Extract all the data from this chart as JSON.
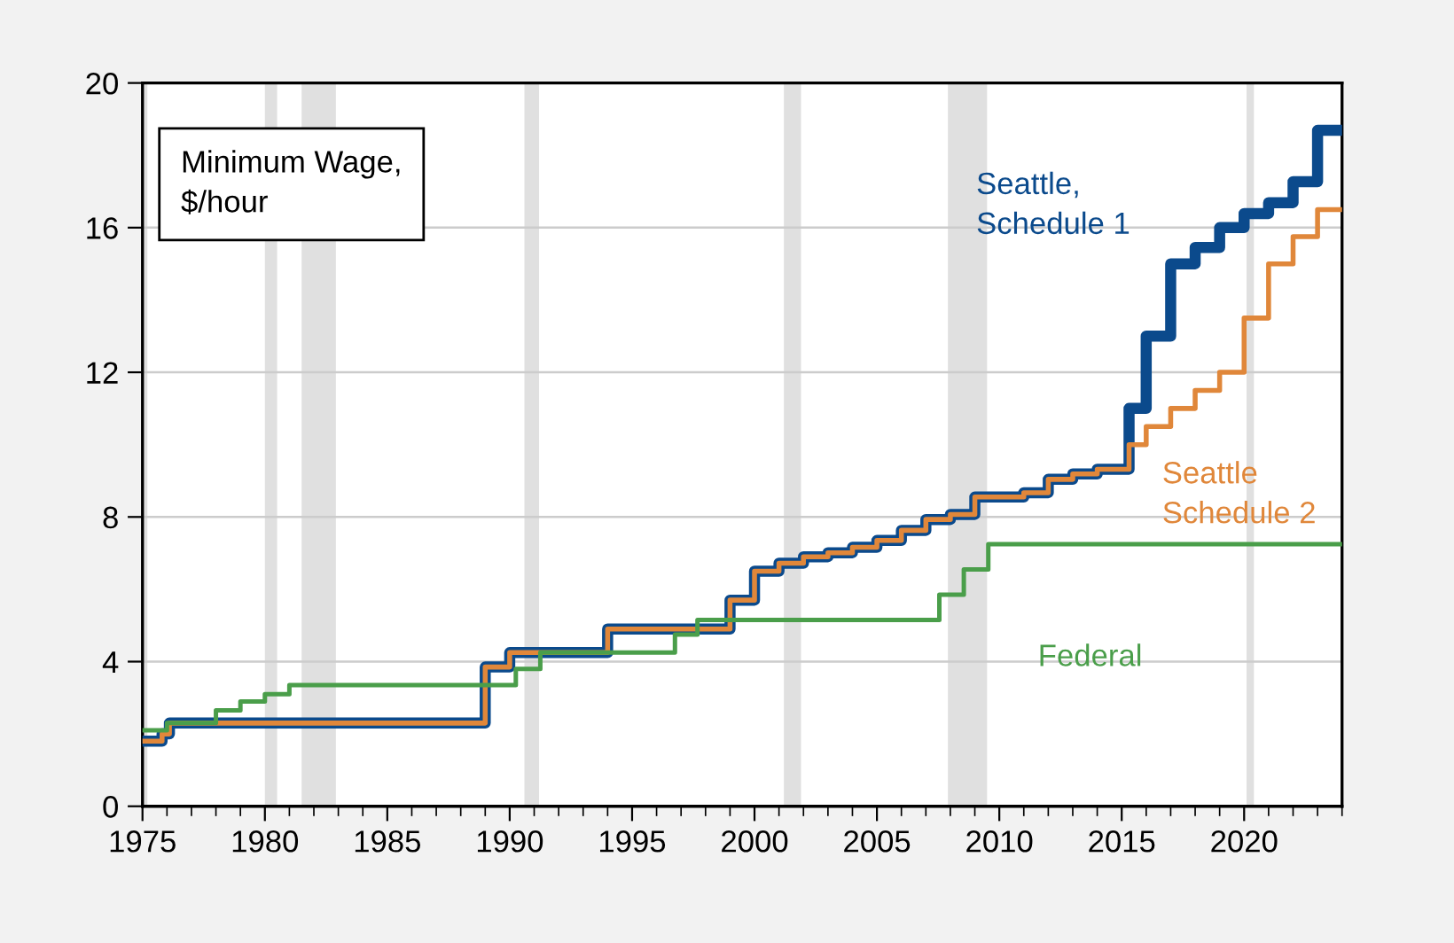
{
  "chart_data": {
    "type": "step",
    "title": "Minimum Wage,\n$/hour",
    "series": [
      {
        "name": "Seattle,\nSchedule 1",
        "color": "#0b4a8c",
        "x": [
          1975,
          1975.8,
          1976.1,
          1989,
          1990,
          1994,
          1999,
          2000,
          2001,
          2002,
          2003,
          2004,
          2005,
          2006,
          2007,
          2008,
          2009,
          2011,
          2012,
          2013,
          2014,
          2015.3,
          2016,
          2017,
          2018,
          2019,
          2020,
          2021,
          2022,
          2023,
          2024
        ],
        "values": [
          1.8,
          2.0,
          2.3,
          3.85,
          4.25,
          4.9,
          5.7,
          6.5,
          6.72,
          6.9,
          7.01,
          7.16,
          7.35,
          7.63,
          7.93,
          8.07,
          8.55,
          8.67,
          9.04,
          9.19,
          9.32,
          11.0,
          13.0,
          15.0,
          15.45,
          16.0,
          16.39,
          16.69,
          17.27,
          18.69,
          18.69
        ]
      },
      {
        "name": "Seattle\nSchedule 2",
        "color": "#e0873a",
        "x": [
          1975,
          1975.8,
          1976.1,
          1989,
          1990,
          1994,
          1999,
          2000,
          2001,
          2002,
          2003,
          2004,
          2005,
          2006,
          2007,
          2008,
          2009,
          2011,
          2012,
          2013,
          2014,
          2015.3,
          2016,
          2017,
          2018,
          2019,
          2020,
          2021,
          2022,
          2023,
          2024
        ],
        "values": [
          1.8,
          2.0,
          2.3,
          3.85,
          4.25,
          4.9,
          5.7,
          6.5,
          6.72,
          6.9,
          7.01,
          7.16,
          7.35,
          7.63,
          7.93,
          8.07,
          8.55,
          8.67,
          9.04,
          9.19,
          9.32,
          10.0,
          10.5,
          11.0,
          11.5,
          12.0,
          13.5,
          15.0,
          15.75,
          16.5,
          16.5
        ]
      },
      {
        "name": "Federal",
        "color": "#4a9e4a",
        "x": [
          1975,
          1976,
          1978,
          1979,
          1980,
          1981,
          1990.25,
          1991.25,
          1996.75,
          1997.67,
          2007.55,
          2008.55,
          2009.55,
          2024
        ],
        "values": [
          2.1,
          2.3,
          2.65,
          2.9,
          3.1,
          3.35,
          3.8,
          4.25,
          4.75,
          5.15,
          5.85,
          6.55,
          7.25,
          7.25
        ]
      }
    ],
    "bands": [
      {
        "axis": "x",
        "from": 1975,
        "to": 1975.2,
        "color": "#e0e0e0"
      },
      {
        "axis": "x",
        "from": 1980.0,
        "to": 1980.5,
        "color": "#e0e0e0"
      },
      {
        "axis": "x",
        "from": 1981.5,
        "to": 1982.9,
        "color": "#e0e0e0"
      },
      {
        "axis": "x",
        "from": 1990.6,
        "to": 1991.2,
        "color": "#e0e0e0"
      },
      {
        "axis": "x",
        "from": 2001.2,
        "to": 2001.9,
        "color": "#e0e0e0"
      },
      {
        "axis": "x",
        "from": 2007.9,
        "to": 2009.5,
        "color": "#e0e0e0"
      },
      {
        "axis": "x",
        "from": 2020.1,
        "to": 2020.4,
        "color": "#e0e0e0"
      }
    ],
    "xlim": [
      1975,
      2024
    ],
    "xticks": [
      1975,
      1980,
      1985,
      1990,
      1995,
      2000,
      2005,
      2010,
      2015,
      2020
    ],
    "ylim": [
      0,
      20
    ],
    "yticks": [
      0,
      4,
      8,
      12,
      16,
      20
    ],
    "grid": "y",
    "legend": false
  }
}
